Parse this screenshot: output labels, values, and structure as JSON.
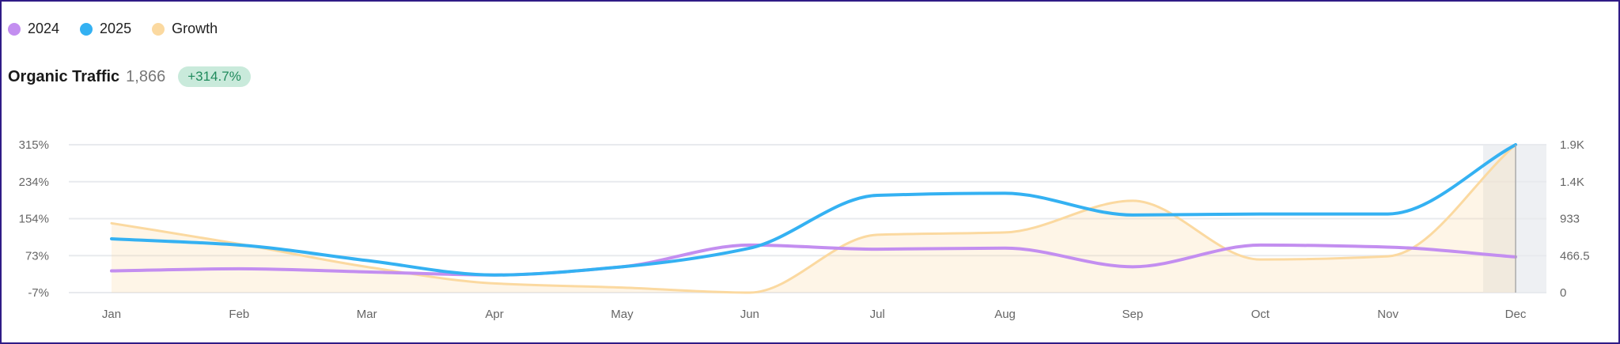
{
  "legend": [
    {
      "label": "2024",
      "color": "#c38ef0"
    },
    {
      "label": "2025",
      "color": "#34b1f2"
    },
    {
      "label": "Growth",
      "color": "#fbd9a0"
    }
  ],
  "header": {
    "title": "Organic Traffic",
    "value": "1,866",
    "change": "+314.7%"
  },
  "chart_data": {
    "type": "line",
    "title": "Organic Traffic",
    "categories": [
      "Jan",
      "Feb",
      "Mar",
      "Apr",
      "May",
      "Jun",
      "Jul",
      "Aug",
      "Sep",
      "Oct",
      "Nov",
      "Dec"
    ],
    "left_axis": {
      "ticks": [
        "315%",
        "234%",
        "154%",
        "73%",
        "-7%"
      ],
      "range": [
        -7,
        315
      ]
    },
    "right_axis": {
      "ticks": [
        "1.9K",
        "1.4K",
        "933",
        "466.5",
        "0"
      ],
      "range": [
        0,
        1866
      ]
    },
    "series": [
      {
        "name": "2024",
        "axis": "right",
        "color": "#c38ef0",
        "values": [
          274,
          300,
          261,
          222,
          326,
          600,
          548,
          561,
          326,
          600,
          574,
          450
        ]
      },
      {
        "name": "2025",
        "axis": "right",
        "color": "#34b1f2",
        "values": [
          679,
          600,
          405,
          222,
          326,
          561,
          1227,
          1253,
          979,
          992,
          992,
          1866
        ]
      },
      {
        "name": "Growth",
        "axis": "left",
        "color": "#fbd9a0",
        "type": "area",
        "values": [
          144,
          99,
          49,
          13,
          4,
          -7,
          119,
          124,
          193,
          65,
          72,
          315
        ]
      }
    ],
    "highlighted_category": "Dec",
    "grid": true,
    "legend_position": "top-left"
  }
}
